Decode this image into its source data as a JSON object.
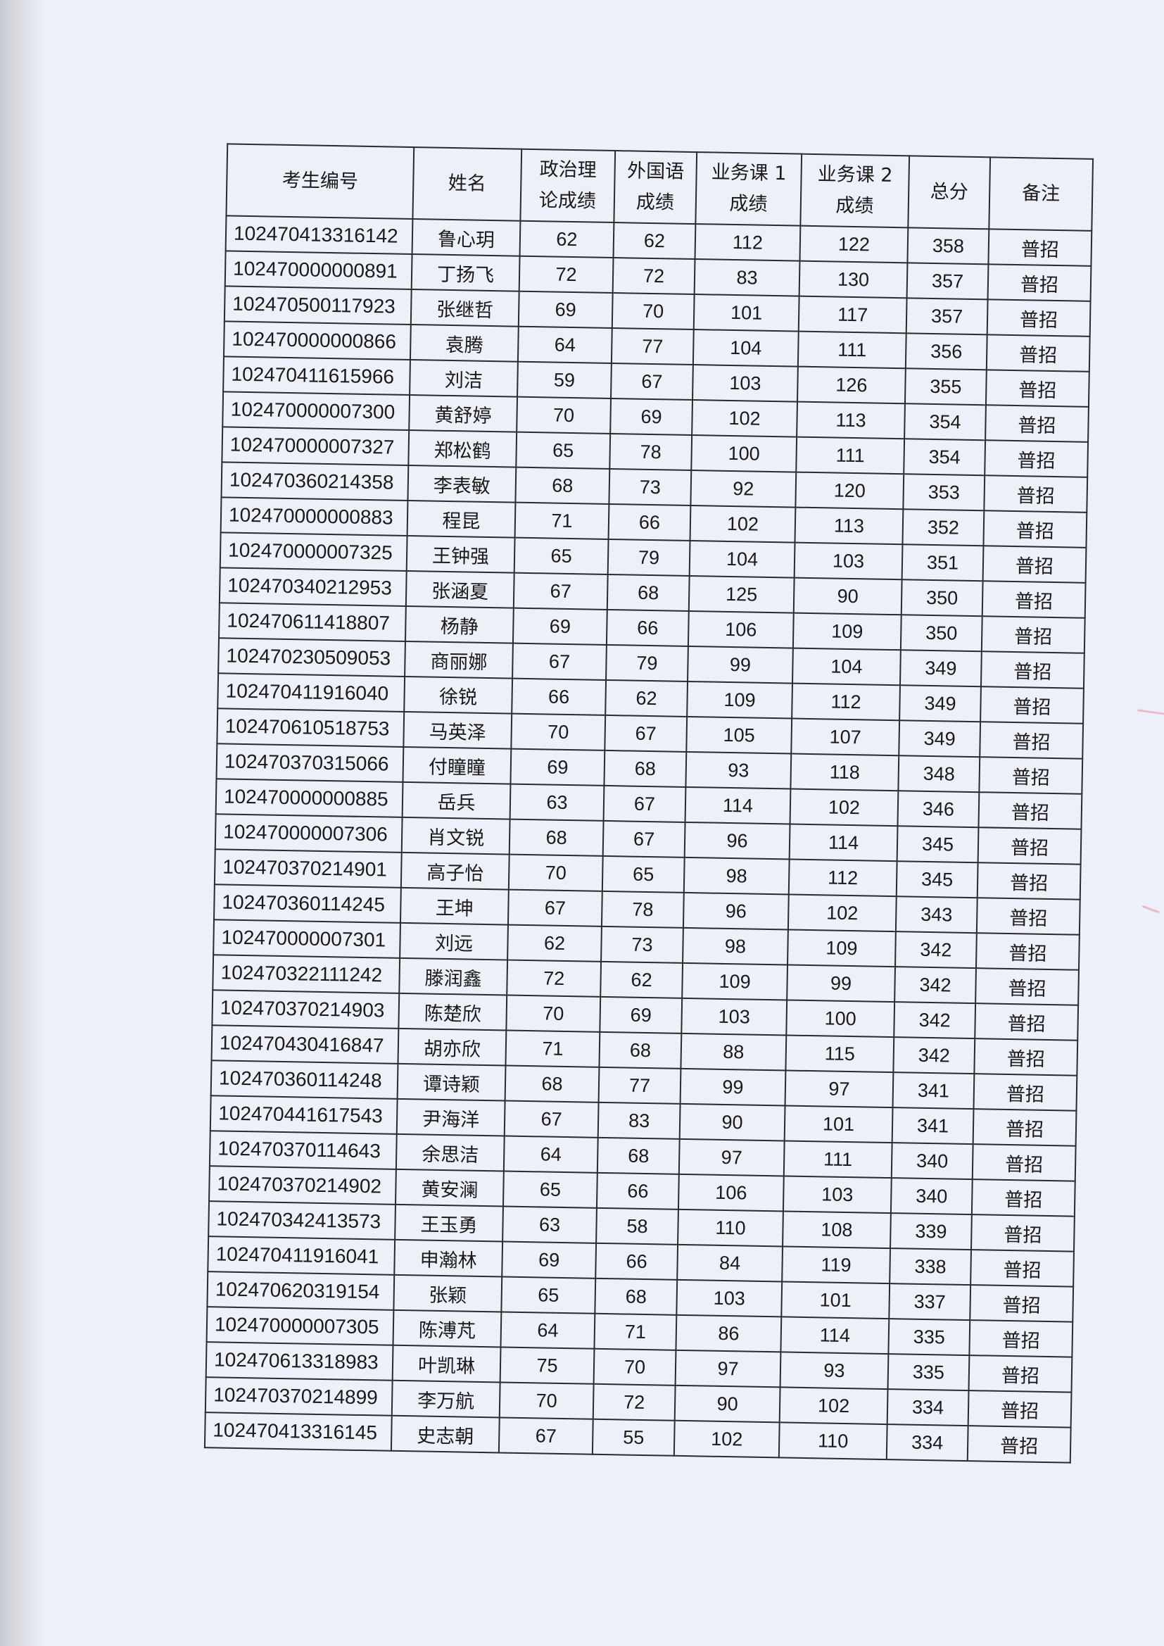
{
  "table": {
    "headers": [
      "考生编号",
      "姓名",
      "政治理论成绩",
      "外国语成绩",
      "业务课1成绩",
      "业务课2成绩",
      "总分",
      "备注"
    ],
    "header_lines": [
      [
        "考生编号"
      ],
      [
        "姓名"
      ],
      [
        "政治理",
        "论成绩"
      ],
      [
        "外国语",
        "成绩"
      ],
      [
        "业务课 1",
        "成绩"
      ],
      [
        "业务课 2",
        "成绩"
      ],
      [
        "总分"
      ],
      [
        "备注"
      ]
    ],
    "rows": [
      [
        "102470413316142",
        "鲁心玥",
        "62",
        "62",
        "112",
        "122",
        "358",
        "普招"
      ],
      [
        "102470000000891",
        "丁扬飞",
        "72",
        "72",
        "83",
        "130",
        "357",
        "普招"
      ],
      [
        "102470500117923",
        "张继哲",
        "69",
        "70",
        "101",
        "117",
        "357",
        "普招"
      ],
      [
        "102470000000866",
        "袁腾",
        "64",
        "77",
        "104",
        "111",
        "356",
        "普招"
      ],
      [
        "102470411615966",
        "刘洁",
        "59",
        "67",
        "103",
        "126",
        "355",
        "普招"
      ],
      [
        "102470000007300",
        "黄舒婷",
        "70",
        "69",
        "102",
        "113",
        "354",
        "普招"
      ],
      [
        "102470000007327",
        "郑松鹤",
        "65",
        "78",
        "100",
        "111",
        "354",
        "普招"
      ],
      [
        "102470360214358",
        "李表敏",
        "68",
        "73",
        "92",
        "120",
        "353",
        "普招"
      ],
      [
        "102470000000883",
        "程昆",
        "71",
        "66",
        "102",
        "113",
        "352",
        "普招"
      ],
      [
        "102470000007325",
        "王钟强",
        "65",
        "79",
        "104",
        "103",
        "351",
        "普招"
      ],
      [
        "102470340212953",
        "张涵夏",
        "67",
        "68",
        "125",
        "90",
        "350",
        "普招"
      ],
      [
        "102470611418807",
        "杨静",
        "69",
        "66",
        "106",
        "109",
        "350",
        "普招"
      ],
      [
        "102470230509053",
        "商丽娜",
        "67",
        "79",
        "99",
        "104",
        "349",
        "普招"
      ],
      [
        "102470411916040",
        "徐锐",
        "66",
        "62",
        "109",
        "112",
        "349",
        "普招"
      ],
      [
        "102470610518753",
        "马英泽",
        "70",
        "67",
        "105",
        "107",
        "349",
        "普招"
      ],
      [
        "102470370315066",
        "付瞳瞳",
        "69",
        "68",
        "93",
        "118",
        "348",
        "普招"
      ],
      [
        "102470000000885",
        "岳兵",
        "63",
        "67",
        "114",
        "102",
        "346",
        "普招"
      ],
      [
        "102470000007306",
        "肖文锐",
        "68",
        "67",
        "96",
        "114",
        "345",
        "普招"
      ],
      [
        "102470370214901",
        "高子怡",
        "70",
        "65",
        "98",
        "112",
        "345",
        "普招"
      ],
      [
        "102470360114245",
        "王坤",
        "67",
        "78",
        "96",
        "102",
        "343",
        "普招"
      ],
      [
        "102470000007301",
        "刘远",
        "62",
        "73",
        "98",
        "109",
        "342",
        "普招"
      ],
      [
        "102470322111242",
        "滕润鑫",
        "72",
        "62",
        "109",
        "99",
        "342",
        "普招"
      ],
      [
        "102470370214903",
        "陈楚欣",
        "70",
        "69",
        "103",
        "100",
        "342",
        "普招"
      ],
      [
        "102470430416847",
        "胡亦欣",
        "71",
        "68",
        "88",
        "115",
        "342",
        "普招"
      ],
      [
        "102470360114248",
        "谭诗颖",
        "68",
        "77",
        "99",
        "97",
        "341",
        "普招"
      ],
      [
        "102470441617543",
        "尹海洋",
        "67",
        "83",
        "90",
        "101",
        "341",
        "普招"
      ],
      [
        "102470370114643",
        "余思洁",
        "64",
        "68",
        "97",
        "111",
        "340",
        "普招"
      ],
      [
        "102470370214902",
        "黄安澜",
        "65",
        "66",
        "106",
        "103",
        "340",
        "普招"
      ],
      [
        "102470342413573",
        "王玉勇",
        "63",
        "58",
        "110",
        "108",
        "339",
        "普招"
      ],
      [
        "102470411916041",
        "申瀚林",
        "69",
        "66",
        "84",
        "119",
        "338",
        "普招"
      ],
      [
        "102470620319154",
        "张颖",
        "65",
        "68",
        "103",
        "101",
        "337",
        "普招"
      ],
      [
        "102470000007305",
        "陈溥芃",
        "64",
        "71",
        "86",
        "114",
        "335",
        "普招"
      ],
      [
        "102470613318983",
        "叶凯琳",
        "75",
        "70",
        "97",
        "93",
        "335",
        "普招"
      ],
      [
        "102470370214899",
        "李万航",
        "70",
        "72",
        "90",
        "102",
        "334",
        "普招"
      ],
      [
        "102470413316145",
        "史志朝",
        "67",
        "55",
        "102",
        "110",
        "334",
        "普招"
      ]
    ]
  }
}
